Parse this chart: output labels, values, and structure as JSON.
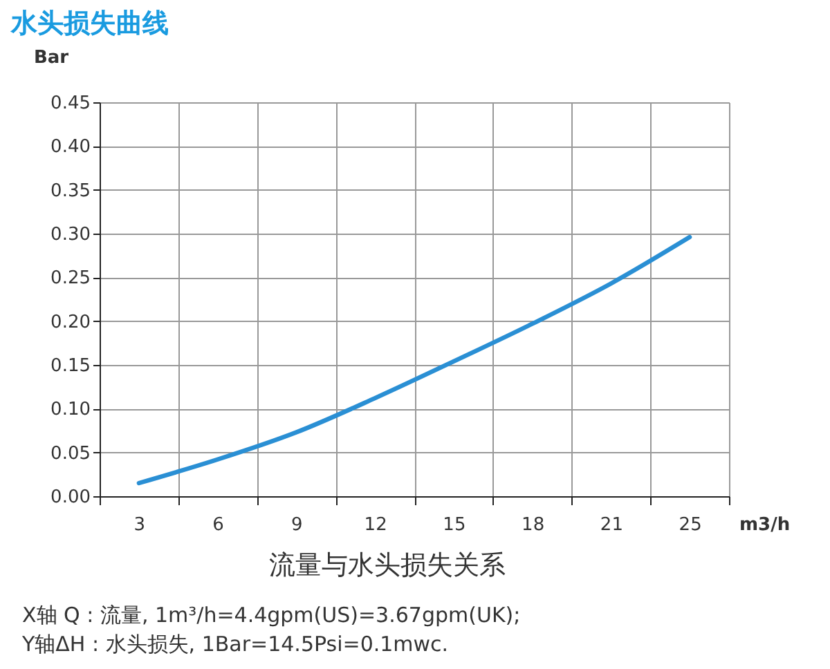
{
  "chart_data": {
    "type": "line",
    "title": "水头损失曲线",
    "xlabel": "m3/h",
    "ylabel": "Bar",
    "annotations": [
      "流量与水头损失关系",
      "X轴 Q : 流量, 1m³/h=4.4gpm(US)=3.67gpm(UK);",
      "Y轴ΔH : 水头损失, 1Bar=14.5Psi=0.1mwc."
    ],
    "categories": [
      "3",
      "6",
      "9",
      "12",
      "15",
      "18",
      "21",
      "25"
    ],
    "series": [
      {
        "color": "#2a8fd4",
        "values": [
          0.015,
          0.042,
          0.073,
          0.112,
          0.154,
          0.197,
          0.243,
          0.296
        ]
      }
    ],
    "ylim": [
      0,
      0.45
    ],
    "yticks": [
      {
        "value": 0,
        "label": "0.00"
      },
      {
        "value": 0.05,
        "label": "0.05"
      },
      {
        "value": 0.1,
        "label": "0.10"
      },
      {
        "value": 0.15,
        "label": "0.15"
      },
      {
        "value": 0.2,
        "label": "0.20"
      },
      {
        "value": 0.25,
        "label": "0.25"
      },
      {
        "value": 0.3,
        "label": "0.30"
      },
      {
        "value": 0.35,
        "label": "0.35"
      },
      {
        "value": 0.4,
        "label": "0.40"
      },
      {
        "value": 0.45,
        "label": "0.45"
      }
    ],
    "grid": true,
    "legend": false,
    "marker": "none",
    "line_style": "solid"
  }
}
